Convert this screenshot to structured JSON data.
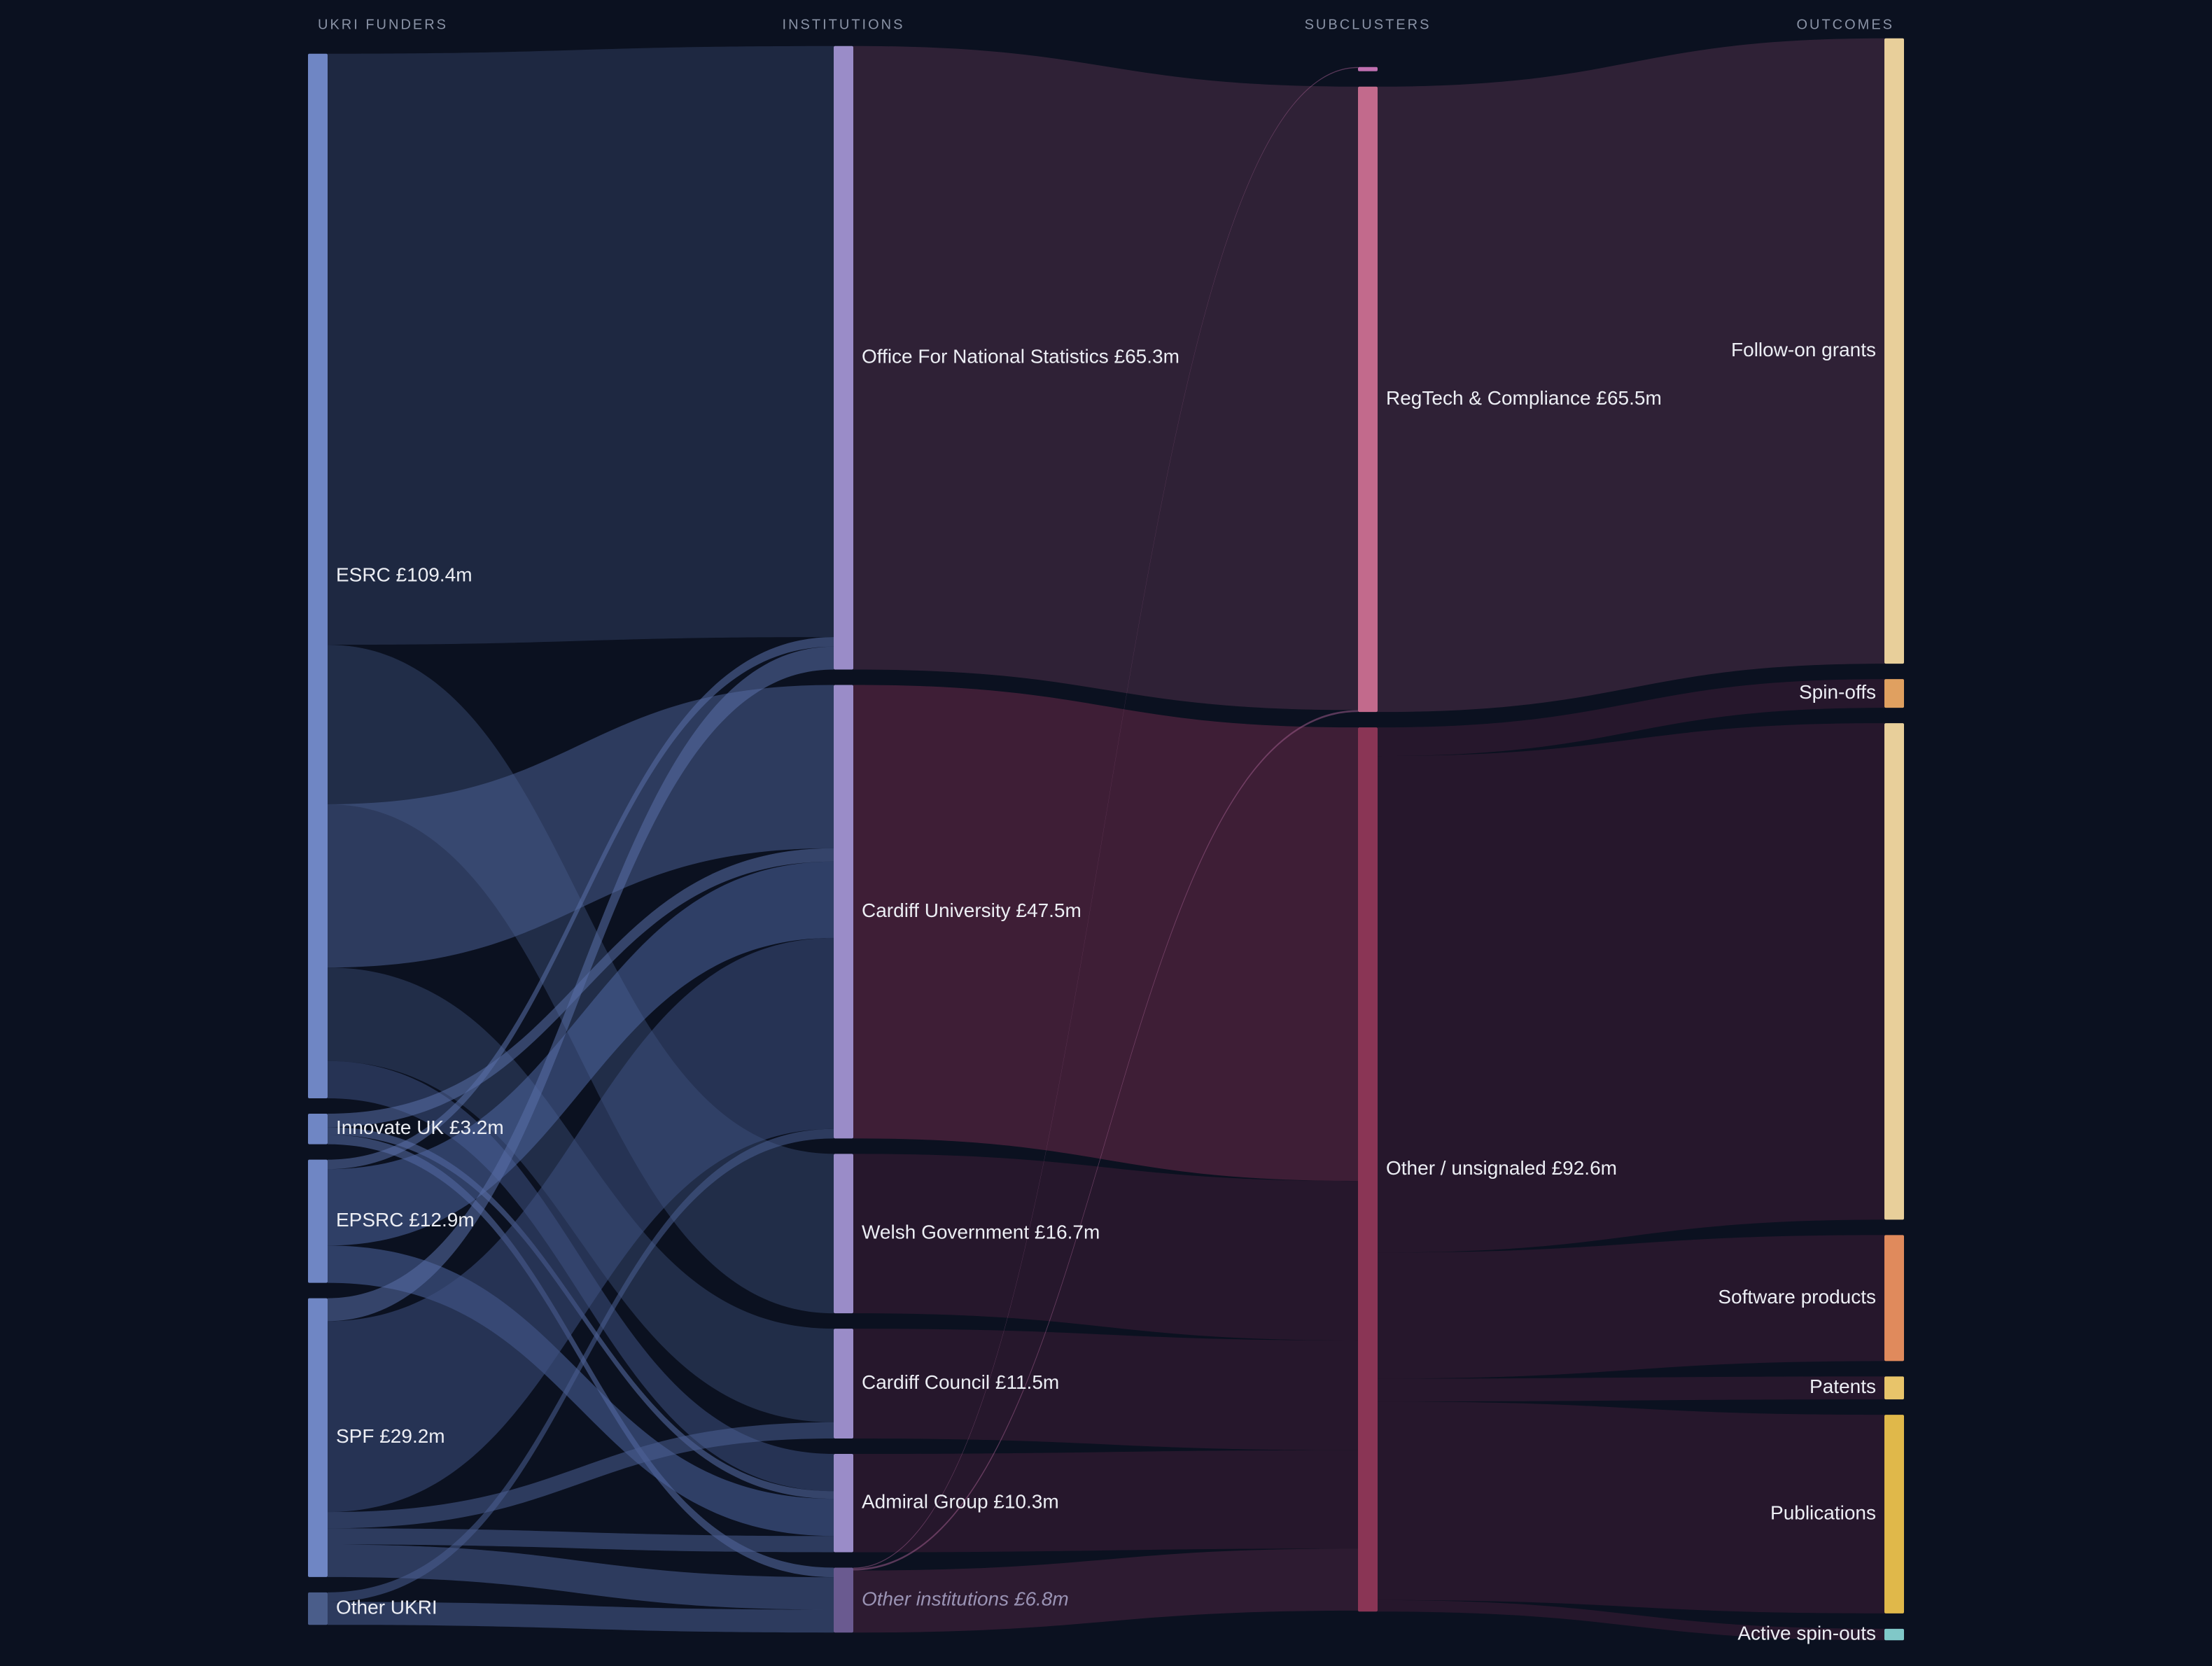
{
  "chart_data": {
    "type": "sankey",
    "columns": [
      {
        "title": "UKRI FUNDERS",
        "nodes": [
          {
            "label": "ESRC £109.4m",
            "value": 109.4,
            "color": "#6f86c4",
            "links": [
              {
                "to": 0,
                "value": 61.9,
                "color": "#2f3d5c"
              },
              {
                "to": 2,
                "value": 16.7,
                "color": "#35456a"
              },
              {
                "to": 1,
                "value": 17.1,
                "color": "#4a5f92"
              },
              {
                "to": 3,
                "value": 9.8,
                "color": "#35456a"
              },
              {
                "to": 4,
                "value": 3.9,
                "color": "#3e5180"
              }
            ]
          },
          {
            "label": "Innovate UK £3.2m",
            "value": 3.2,
            "color": "#6f86c4",
            "links": [
              {
                "to": 1,
                "value": 1.4,
                "color": "#5a70a8"
              },
              {
                "to": 4,
                "value": 0.8,
                "color": "#5a70a8"
              },
              {
                "to": 5,
                "value": 1.0,
                "color": "#5a70a8"
              }
            ]
          },
          {
            "label": "EPSRC £12.9m",
            "value": 12.9,
            "color": "#6f86c4",
            "links": [
              {
                "to": 0,
                "value": 1.0,
                "color": "#5a70a8"
              },
              {
                "to": 1,
                "value": 8.0,
                "color": "#4f66a0"
              },
              {
                "to": 4,
                "value": 3.9,
                "color": "#4f66a0"
              }
            ]
          },
          {
            "label": "SPF £29.2m",
            "value": 29.2,
            "color": "#6f86c4",
            "links": [
              {
                "to": 0,
                "value": 2.4,
                "color": "#5a70a8"
              },
              {
                "to": 1,
                "value": 20.0,
                "color": "#3e5180"
              },
              {
                "to": 3,
                "value": 1.7,
                "color": "#4a5f92"
              },
              {
                "to": 4,
                "value": 1.7,
                "color": "#4a5f92"
              },
              {
                "to": 5,
                "value": 3.4,
                "color": "#4a5f92"
              }
            ]
          },
          {
            "label": "Other UKRI",
            "value": 3.4,
            "color": "#4a5d8a",
            "links": [
              {
                "to": 1,
                "value": 1.0,
                "color": "#4a5f92"
              },
              {
                "to": 5,
                "value": 2.4,
                "color": "#4a5f92"
              }
            ]
          }
        ]
      },
      {
        "title": "INSTITUTIONS",
        "nodes": [
          {
            "label": "Office For National Statistics £65.3m",
            "value": 65.3,
            "color": "#9a8cc8",
            "links": [
              {
                "to": 1,
                "value": 65.3,
                "color": "#4e3048"
              }
            ]
          },
          {
            "label": "Cardiff University £47.5m",
            "value": 47.5,
            "color": "#9a8cc8",
            "links": [
              {
                "to": 2,
                "value": 47.5,
                "color": "#6a2a48"
              }
            ]
          },
          {
            "label": "Welsh Government £16.7m",
            "value": 16.7,
            "color": "#9a8cc8",
            "links": [
              {
                "to": 2,
                "value": 16.7,
                "color": "#3e1e36"
              }
            ]
          },
          {
            "label": "Cardiff Council £11.5m",
            "value": 11.5,
            "color": "#9a8cc8",
            "links": [
              {
                "to": 2,
                "value": 11.5,
                "color": "#3e1e36"
              }
            ]
          },
          {
            "label": "Admiral Group £10.3m",
            "value": 10.3,
            "color": "#9a8cc8",
            "links": [
              {
                "to": 2,
                "value": 10.3,
                "color": "#3e1e36"
              }
            ]
          },
          {
            "label": "Other institutions £6.8m",
            "value": 6.8,
            "color": "#6a5a90",
            "links": [
              {
                "to": 0,
                "value": 0.1,
                "color": "#9a5a88"
              },
              {
                "to": 1,
                "value": 0.2,
                "color": "#9a5a88"
              },
              {
                "to": 2,
                "value": 6.5,
                "color": "#4a2440"
              }
            ]
          }
        ]
      },
      {
        "title": "SUBCLUSTERS",
        "nodes": [
          {
            "label": null,
            "value": 0.1,
            "color": "#c070b0",
            "links": []
          },
          {
            "label": "RegTech & Compliance £65.5m",
            "value": 65.5,
            "color": "#c26a8c",
            "links": [
              {
                "to": 0,
                "value": 65.5,
                "color": "#4e3048"
              }
            ]
          },
          {
            "label": "Other / unsignaled £92.6m",
            "value": 92.6,
            "color": "#8a3555",
            "links": [
              {
                "to": 1,
                "value": 3.0,
                "color": "#3e1e36"
              },
              {
                "to": 2,
                "value": 52.0,
                "color": "#3e1e36"
              },
              {
                "to": 3,
                "value": 13.2,
                "color": "#3e1e36"
              },
              {
                "to": 4,
                "value": 2.4,
                "color": "#3e1e36"
              },
              {
                "to": 5,
                "value": 20.8,
                "color": "#3e1e36"
              },
              {
                "to": 6,
                "value": 1.2,
                "color": "#3e1e36"
              }
            ]
          }
        ]
      },
      {
        "title": "OUTCOMES",
        "nodes": [
          {
            "label": "Follow-on grants",
            "value": 65.5,
            "color": "#e8cf9a",
            "links": []
          },
          {
            "label": "Spin-offs",
            "value": 3.0,
            "color": "#e0a060",
            "links": []
          },
          {
            "label": null,
            "value": 52.0,
            "color": "#e8cf9a",
            "links": []
          },
          {
            "label": "Software products",
            "value": 13.2,
            "color": "#e08a5c",
            "links": []
          },
          {
            "label": "Patents",
            "value": 2.4,
            "color": "#e8c46a",
            "links": []
          },
          {
            "label": "Publications",
            "value": 20.8,
            "color": "#e0b84a",
            "links": []
          },
          {
            "label": "Active spin-outs",
            "value": 1.2,
            "color": "#80c8c8",
            "links": []
          }
        ]
      }
    ]
  }
}
